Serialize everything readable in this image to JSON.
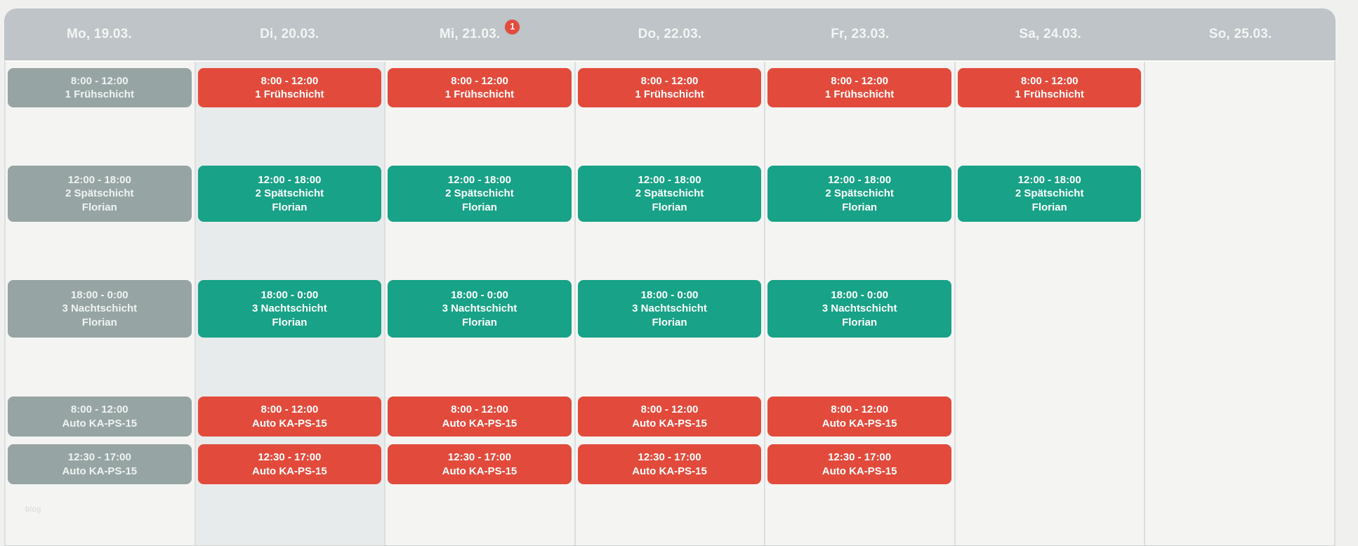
{
  "colors": {
    "red": "#e24b3c",
    "green": "#18a287",
    "muted": "#96a5a3",
    "header_bg": "#bec4c7",
    "column_bg": "#f4f4f3",
    "column_highlight": "#e8ebeb",
    "page_bg": "#f0f1ef"
  },
  "watermark": "blog",
  "week": {
    "days": [
      {
        "label": "Mo, 19.03.",
        "badge": null,
        "highlight": false,
        "events": [
          {
            "row": 1,
            "variant": "muted",
            "time": "8:00 - 12:00",
            "title": "1 Frühschicht",
            "person": null
          },
          {
            "row": 2,
            "variant": "muted",
            "time": "12:00 - 18:00",
            "title": "2 Spätschicht",
            "person": "Florian"
          },
          {
            "row": 3,
            "variant": "muted",
            "time": "18:00 - 0:00",
            "title": "3 Nachtschicht",
            "person": "Florian"
          },
          {
            "row": 4,
            "variant": "muted",
            "time": "8:00 - 12:00",
            "title": "Auto KA-PS-15",
            "person": null
          },
          {
            "row": 5,
            "variant": "muted",
            "time": "12:30 - 17:00",
            "title": "Auto KA-PS-15",
            "person": null
          }
        ]
      },
      {
        "label": "Di, 20.03.",
        "badge": null,
        "highlight": true,
        "events": [
          {
            "row": 1,
            "variant": "red",
            "time": "8:00 - 12:00",
            "title": "1 Frühschicht",
            "person": null
          },
          {
            "row": 2,
            "variant": "green",
            "time": "12:00 - 18:00",
            "title": "2 Spätschicht",
            "person": "Florian"
          },
          {
            "row": 3,
            "variant": "green",
            "time": "18:00 - 0:00",
            "title": "3 Nachtschicht",
            "person": "Florian"
          },
          {
            "row": 4,
            "variant": "red",
            "time": "8:00 - 12:00",
            "title": "Auto KA-PS-15",
            "person": null
          },
          {
            "row": 5,
            "variant": "red",
            "time": "12:30 - 17:00",
            "title": "Auto KA-PS-15",
            "person": null
          }
        ]
      },
      {
        "label": "Mi, 21.03.",
        "badge": "1",
        "highlight": false,
        "events": [
          {
            "row": 1,
            "variant": "red",
            "time": "8:00 - 12:00",
            "title": "1 Frühschicht",
            "person": null
          },
          {
            "row": 2,
            "variant": "green",
            "time": "12:00 - 18:00",
            "title": "2 Spätschicht",
            "person": "Florian"
          },
          {
            "row": 3,
            "variant": "green",
            "time": "18:00 - 0:00",
            "title": "3 Nachtschicht",
            "person": "Florian"
          },
          {
            "row": 4,
            "variant": "red",
            "time": "8:00 - 12:00",
            "title": "Auto KA-PS-15",
            "person": null
          },
          {
            "row": 5,
            "variant": "red",
            "time": "12:30 - 17:00",
            "title": "Auto KA-PS-15",
            "person": null
          }
        ]
      },
      {
        "label": "Do, 22.03.",
        "badge": null,
        "highlight": false,
        "events": [
          {
            "row": 1,
            "variant": "red",
            "time": "8:00 - 12:00",
            "title": "1 Frühschicht",
            "person": null
          },
          {
            "row": 2,
            "variant": "green",
            "time": "12:00 - 18:00",
            "title": "2 Spätschicht",
            "person": "Florian"
          },
          {
            "row": 3,
            "variant": "green",
            "time": "18:00 - 0:00",
            "title": "3 Nachtschicht",
            "person": "Florian"
          },
          {
            "row": 4,
            "variant": "red",
            "time": "8:00 - 12:00",
            "title": "Auto KA-PS-15",
            "person": null
          },
          {
            "row": 5,
            "variant": "red",
            "time": "12:30 - 17:00",
            "title": "Auto KA-PS-15",
            "person": null
          }
        ]
      },
      {
        "label": "Fr, 23.03.",
        "badge": null,
        "highlight": false,
        "events": [
          {
            "row": 1,
            "variant": "red",
            "time": "8:00 - 12:00",
            "title": "1 Frühschicht",
            "person": null
          },
          {
            "row": 2,
            "variant": "green",
            "time": "12:00 - 18:00",
            "title": "2 Spätschicht",
            "person": "Florian"
          },
          {
            "row": 3,
            "variant": "green",
            "time": "18:00 - 0:00",
            "title": "3 Nachtschicht",
            "person": "Florian"
          },
          {
            "row": 4,
            "variant": "red",
            "time": "8:00 - 12:00",
            "title": "Auto KA-PS-15",
            "person": null
          },
          {
            "row": 5,
            "variant": "red",
            "time": "12:30 - 17:00",
            "title": "Auto KA-PS-15",
            "person": null
          }
        ]
      },
      {
        "label": "Sa, 24.03.",
        "badge": null,
        "highlight": false,
        "events": [
          {
            "row": 1,
            "variant": "red",
            "time": "8:00 - 12:00",
            "title": "1 Frühschicht",
            "person": null
          },
          {
            "row": 2,
            "variant": "green",
            "time": "12:00 - 18:00",
            "title": "2 Spätschicht",
            "person": "Florian"
          }
        ]
      },
      {
        "label": "So, 25.03.",
        "badge": null,
        "highlight": false,
        "events": []
      }
    ]
  }
}
